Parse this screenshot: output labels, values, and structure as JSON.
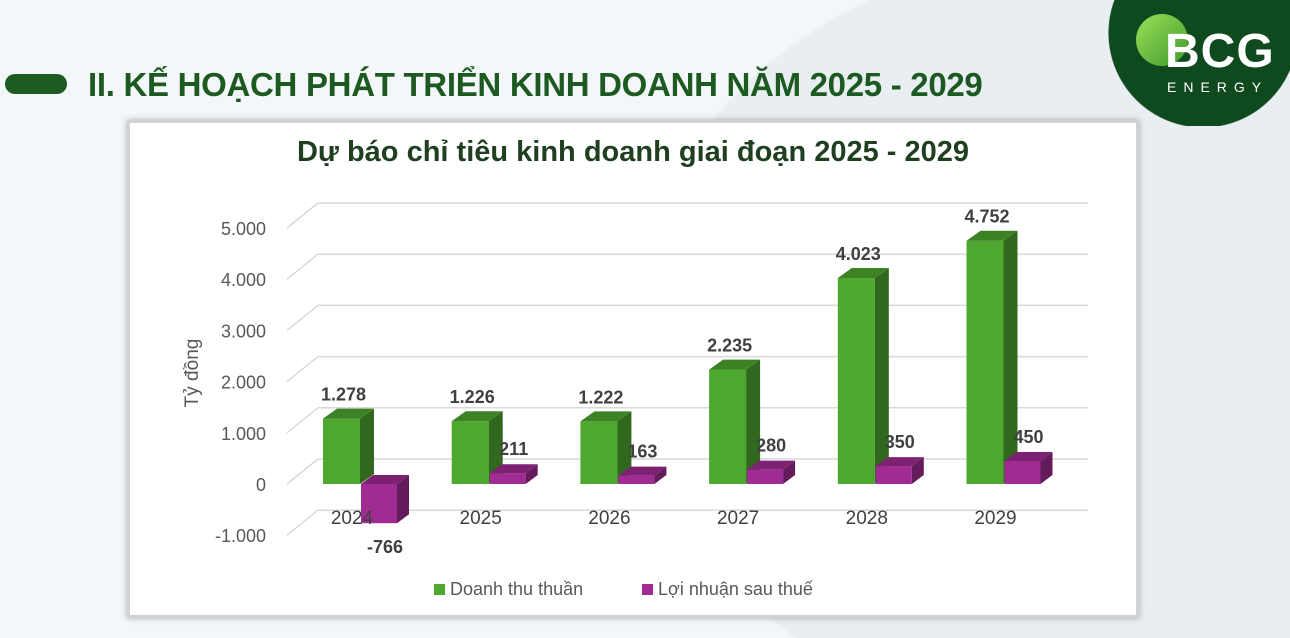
{
  "header": {
    "title": "II. KẾ HOẠCH PHÁT TRIỂN KINH DOANH NĂM 2025 - 2029"
  },
  "logo": {
    "text": "BCG",
    "subtext": "ENERGY",
    "color": "#0f4a1f"
  },
  "chart_data": {
    "type": "bar",
    "title": "Dự báo chỉ tiêu kinh doanh giai đoạn 2025 - 2029",
    "ylabel": "Tỷ đồng",
    "xlabel": "",
    "categories": [
      "2024",
      "2025",
      "2026",
      "2027",
      "2028",
      "2029"
    ],
    "series": [
      {
        "name": "Doanh thu thuần",
        "color": "#4ea72e",
        "values": [
          1278,
          1226,
          1222,
          2235,
          4023,
          4752
        ],
        "labels": [
          "1.278",
          "1.226",
          "1.222",
          "2.235",
          "4.023",
          "4.752"
        ]
      },
      {
        "name": "Lợi nhuận sau thuế",
        "color": "#a02b93",
        "values": [
          -766,
          211,
          163,
          280,
          350,
          450
        ],
        "labels": [
          "-766",
          "211",
          "163",
          "280",
          "350",
          "450"
        ]
      }
    ],
    "yticks": [
      -1000,
      0,
      1000,
      2000,
      3000,
      4000,
      5000
    ],
    "ytick_labels": [
      "-1.000",
      "0",
      "1.000",
      "2.000",
      "3.000",
      "4.000",
      "5.000"
    ],
    "ylim": [
      -1000,
      5000
    ],
    "grid": true,
    "style": "3d-clustered-column",
    "legend": "bottom"
  }
}
